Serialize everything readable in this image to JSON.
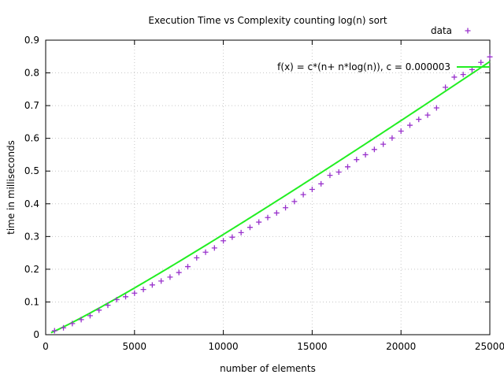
{
  "chart_data": {
    "type": "scatter",
    "title": "Execution Time vs Complexity counting log(n) sort",
    "xlabel": "number of elements",
    "ylabel": "time in milliseconds",
    "xlim": [
      0,
      25000
    ],
    "ylim": [
      0,
      0.9
    ],
    "x_ticks": [
      0,
      5000,
      10000,
      15000,
      20000,
      25000
    ],
    "x_tick_labels": [
      "0",
      "5000",
      "10000",
      "15000",
      "20000",
      "25000"
    ],
    "y_ticks": [
      0,
      0.1,
      0.2,
      0.3,
      0.4,
      0.5,
      0.6,
      0.7,
      0.8,
      0.9
    ],
    "y_tick_labels": [
      "0",
      "0.1",
      "0.2",
      "0.3",
      "0.4",
      "0.5",
      "0.6",
      "0.7",
      "0.8",
      "0.9"
    ],
    "grid": true,
    "legend_position": "top-right",
    "series": [
      {
        "name": "data",
        "kind": "points",
        "marker": "plus",
        "color": "#9932cc",
        "x": [
          500,
          1000,
          1500,
          2000,
          2500,
          3000,
          3500,
          4000,
          4500,
          5000,
          5500,
          6000,
          6500,
          7000,
          7500,
          8000,
          8500,
          9000,
          9500,
          10000,
          10500,
          11000,
          11500,
          12000,
          12500,
          13000,
          13500,
          14000,
          14500,
          15000,
          15500,
          16000,
          16500,
          17000,
          17500,
          18000,
          18500,
          19000,
          19500,
          20000,
          20500,
          21000,
          21500,
          22000,
          22500,
          23000,
          23500,
          24000,
          24500,
          25000
        ],
        "y": [
          0.012,
          0.021,
          0.034,
          0.046,
          0.058,
          0.075,
          0.09,
          0.107,
          0.116,
          0.127,
          0.138,
          0.152,
          0.164,
          0.176,
          0.19,
          0.208,
          0.235,
          0.252,
          0.265,
          0.287,
          0.298,
          0.312,
          0.328,
          0.344,
          0.358,
          0.372,
          0.388,
          0.407,
          0.428,
          0.444,
          0.461,
          0.487,
          0.497,
          0.513,
          0.535,
          0.55,
          0.566,
          0.582,
          0.601,
          0.622,
          0.64,
          0.658,
          0.671,
          0.693,
          0.756,
          0.787,
          0.795,
          0.81,
          0.832,
          0.849
        ]
      },
      {
        "name": "f(x) = c*(n+ n*log(n)), c = 0.000003",
        "kind": "function",
        "expression": "c*(n+n*log(n))",
        "c": 3e-06,
        "color": "#22ee22"
      }
    ]
  }
}
